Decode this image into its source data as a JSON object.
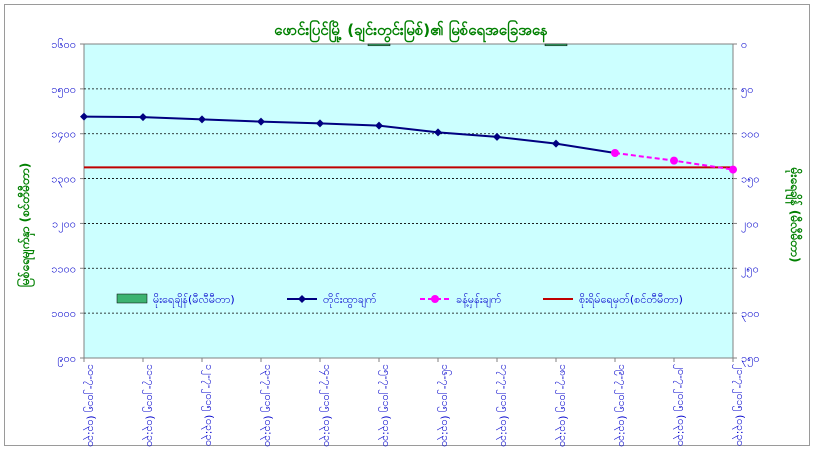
{
  "chart_data": {
    "type": "line",
    "title": "ဖောင်းပြင်မြို့ (ချင်းတွင်းမြစ်)၏ မြစ်ရေအခြေအနေ",
    "ylabel_left": "မြစ်ရေမျက်နှာ (စင်တီမီတာ)",
    "ylabel_right": "မိုးရေချိန် (မီလီမီတာ)",
    "ylim_left": [
      900,
      1600
    ],
    "ylim_right": [
      0,
      350
    ],
    "y_ticks_left": [
      "၁၆၀၀",
      "၁၅၀၀",
      "၁၄၀၀",
      "၁၃၀၀",
      "၁၂၀၀",
      "၁၁၀၀",
      "၁၀၀၀",
      "၉၀၀"
    ],
    "y_ticks_right": [
      "၀",
      "၅၀",
      "၁၀၀",
      "၁၅၀",
      "၂၀၀",
      "၂၅၀",
      "၃၀၀",
      "၃၅၀"
    ],
    "categories": [
      "၁၀-၇-၂၀၁၅ (၀၃:၃၀)",
      "၁၁-၇-၂၀၁၅ (၀၃:၃၀)",
      "၁၂-၇-၂၀၁၅ (၀၃:၃၀)",
      "၁၃-၇-၂၀၁၅ (၀၃:၃၀)",
      "၁၄-၇-၂၀၁၅ (၀၃:၃၀)",
      "၁၅-၇-၂၀၁၅ (၀၃:၃၀)",
      "၁၆-၇-၂၀၁၅ (၀၃:၃၀)",
      "၁၇-၇-၂၀၁၅ (၀၃:၃၀)",
      "၁၈-၇-၂၀၁၅ (၀၃:၃၀)",
      "၁၉-၇-၂၀၁၅ (၀၃:၃၀)",
      "၂၀-၇-၂၀၁၅ (၀၃:၃၀)",
      "၂၁-၇-၂၀၁၅ (၀၃:၃၀)"
    ],
    "series": [
      {
        "name": "မိုးရေချိန်(မီလီမီတာ)",
        "type": "bar",
        "axis": "right",
        "color": "#3cb371",
        "values": [
          null,
          null,
          null,
          null,
          null,
          2,
          null,
          null,
          2,
          null,
          null,
          null
        ]
      },
      {
        "name": "တိုင်းထွာချက်",
        "type": "line",
        "axis": "left",
        "color": "#000080",
        "values": [
          1438,
          1437,
          1432,
          1427,
          1423,
          1418,
          1403,
          1393,
          1378,
          1357,
          null,
          null
        ]
      },
      {
        "name": "ခန့်မှန်းချက်",
        "type": "line-dashed",
        "axis": "left",
        "color": "#ff00ff",
        "values": [
          null,
          null,
          null,
          null,
          null,
          null,
          null,
          null,
          null,
          1357,
          1340,
          1320
        ]
      },
      {
        "name": "စိုးရိမ်ရေမှတ်(စင်တီမီတာ)",
        "type": "hline",
        "axis": "left",
        "color": "#c00000",
        "value": 1325
      }
    ],
    "plot_background": "#ccffff",
    "grid": "horizontal dashed",
    "legend_position": "inside-bottom"
  }
}
